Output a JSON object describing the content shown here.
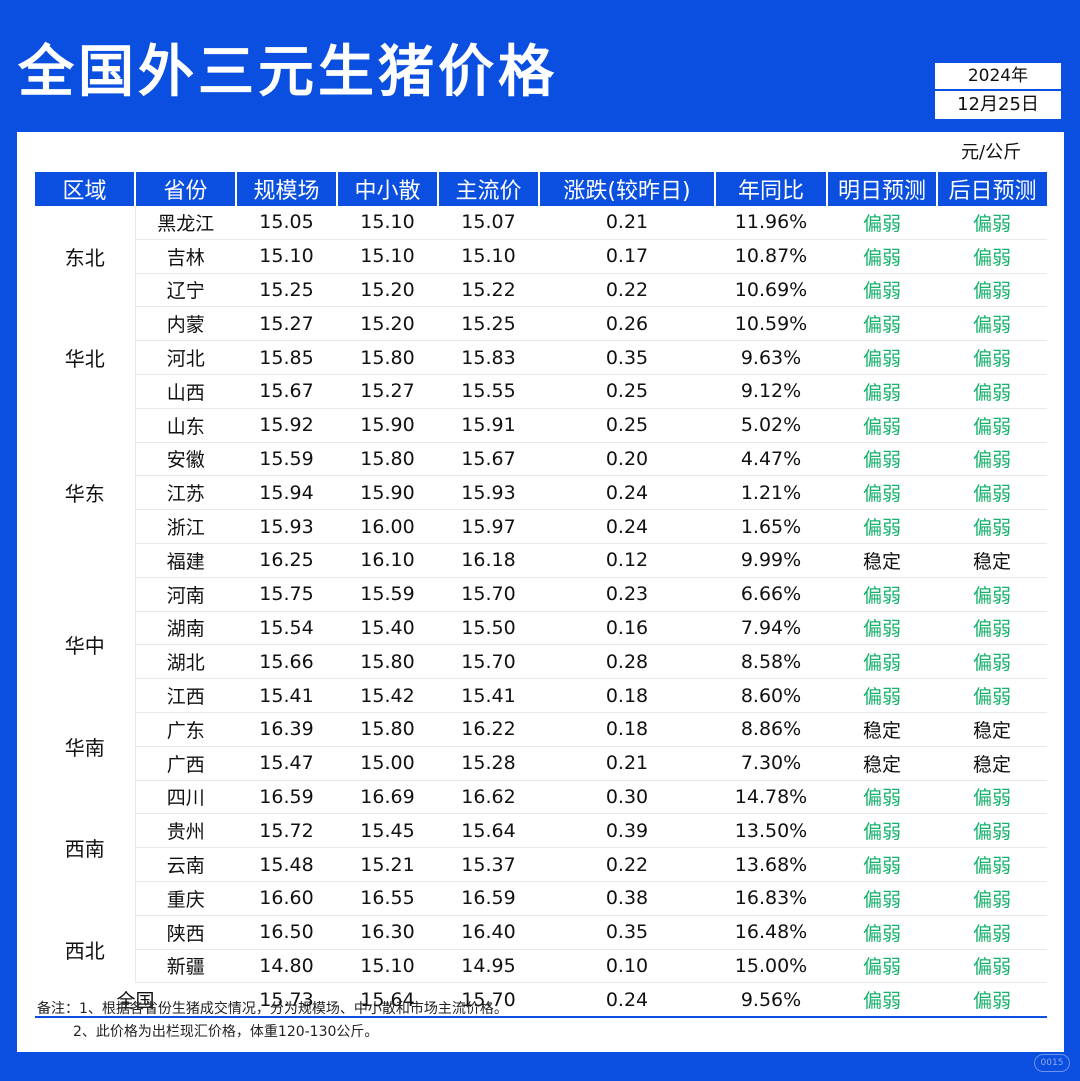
{
  "title": "全国外三元生猪价格",
  "date": {
    "year": "2024年",
    "day": "12月25日"
  },
  "unit": "元/公斤",
  "headers": [
    "区域",
    "省份",
    "规模场",
    "中小散",
    "主流价",
    "涨跌(较昨日)",
    "年同比",
    "明日预测",
    "后日预测"
  ],
  "regions": [
    {
      "name": "东北",
      "rows": [
        {
          "province": "黑龙江",
          "large": "15.05",
          "small": "15.10",
          "main": "15.07",
          "change": "0.21",
          "yoy": "11.96%",
          "tomorrow": "偏弱",
          "dayafter": "偏弱"
        },
        {
          "province": "吉林",
          "large": "15.10",
          "small": "15.10",
          "main": "15.10",
          "change": "0.17",
          "yoy": "10.87%",
          "tomorrow": "偏弱",
          "dayafter": "偏弱"
        },
        {
          "province": "辽宁",
          "large": "15.25",
          "small": "15.20",
          "main": "15.22",
          "change": "0.22",
          "yoy": "10.69%",
          "tomorrow": "偏弱",
          "dayafter": "偏弱"
        }
      ]
    },
    {
      "name": "华北",
      "rows": [
        {
          "province": "内蒙",
          "large": "15.27",
          "small": "15.20",
          "main": "15.25",
          "change": "0.26",
          "yoy": "10.59%",
          "tomorrow": "偏弱",
          "dayafter": "偏弱"
        },
        {
          "province": "河北",
          "large": "15.85",
          "small": "15.80",
          "main": "15.83",
          "change": "0.35",
          "yoy": "9.63%",
          "tomorrow": "偏弱",
          "dayafter": "偏弱"
        },
        {
          "province": "山西",
          "large": "15.67",
          "small": "15.27",
          "main": "15.55",
          "change": "0.25",
          "yoy": "9.12%",
          "tomorrow": "偏弱",
          "dayafter": "偏弱"
        }
      ]
    },
    {
      "name": "华东",
      "rows": [
        {
          "province": "山东",
          "large": "15.92",
          "small": "15.90",
          "main": "15.91",
          "change": "0.25",
          "yoy": "5.02%",
          "tomorrow": "偏弱",
          "dayafter": "偏弱"
        },
        {
          "province": "安徽",
          "large": "15.59",
          "small": "15.80",
          "main": "15.67",
          "change": "0.20",
          "yoy": "4.47%",
          "tomorrow": "偏弱",
          "dayafter": "偏弱"
        },
        {
          "province": "江苏",
          "large": "15.94",
          "small": "15.90",
          "main": "15.93",
          "change": "0.24",
          "yoy": "1.21%",
          "tomorrow": "偏弱",
          "dayafter": "偏弱"
        },
        {
          "province": "浙江",
          "large": "15.93",
          "small": "16.00",
          "main": "15.97",
          "change": "0.24",
          "yoy": "1.65%",
          "tomorrow": "偏弱",
          "dayafter": "偏弱"
        },
        {
          "province": "福建",
          "large": "16.25",
          "small": "16.10",
          "main": "16.18",
          "change": "0.12",
          "yoy": "9.99%",
          "tomorrow": "稳定",
          "dayafter": "稳定"
        }
      ]
    },
    {
      "name": "华中",
      "rows": [
        {
          "province": "河南",
          "large": "15.75",
          "small": "15.59",
          "main": "15.70",
          "change": "0.23",
          "yoy": "6.66%",
          "tomorrow": "偏弱",
          "dayafter": "偏弱"
        },
        {
          "province": "湖南",
          "large": "15.54",
          "small": "15.40",
          "main": "15.50",
          "change": "0.16",
          "yoy": "7.94%",
          "tomorrow": "偏弱",
          "dayafter": "偏弱"
        },
        {
          "province": "湖北",
          "large": "15.66",
          "small": "15.80",
          "main": "15.70",
          "change": "0.28",
          "yoy": "8.58%",
          "tomorrow": "偏弱",
          "dayafter": "偏弱"
        },
        {
          "province": "江西",
          "large": "15.41",
          "small": "15.42",
          "main": "15.41",
          "change": "0.18",
          "yoy": "8.60%",
          "tomorrow": "偏弱",
          "dayafter": "偏弱"
        }
      ]
    },
    {
      "name": "华南",
      "rows": [
        {
          "province": "广东",
          "large": "16.39",
          "small": "15.80",
          "main": "16.22",
          "change": "0.18",
          "yoy": "8.86%",
          "tomorrow": "稳定",
          "dayafter": "稳定"
        },
        {
          "province": "广西",
          "large": "15.47",
          "small": "15.00",
          "main": "15.28",
          "change": "0.21",
          "yoy": "7.30%",
          "tomorrow": "稳定",
          "dayafter": "稳定"
        }
      ]
    },
    {
      "name": "西南",
      "rows": [
        {
          "province": "四川",
          "large": "16.59",
          "small": "16.69",
          "main": "16.62",
          "change": "0.30",
          "yoy": "14.78%",
          "tomorrow": "偏弱",
          "dayafter": "偏弱"
        },
        {
          "province": "贵州",
          "large": "15.72",
          "small": "15.45",
          "main": "15.64",
          "change": "0.39",
          "yoy": "13.50%",
          "tomorrow": "偏弱",
          "dayafter": "偏弱"
        },
        {
          "province": "云南",
          "large": "15.48",
          "small": "15.21",
          "main": "15.37",
          "change": "0.22",
          "yoy": "13.68%",
          "tomorrow": "偏弱",
          "dayafter": "偏弱"
        },
        {
          "province": "重庆",
          "large": "16.60",
          "small": "16.55",
          "main": "16.59",
          "change": "0.38",
          "yoy": "16.83%",
          "tomorrow": "偏弱",
          "dayafter": "偏弱"
        }
      ]
    },
    {
      "name": "西北",
      "rows": [
        {
          "province": "陕西",
          "large": "16.50",
          "small": "16.30",
          "main": "16.40",
          "change": "0.35",
          "yoy": "16.48%",
          "tomorrow": "偏弱",
          "dayafter": "偏弱"
        },
        {
          "province": "新疆",
          "large": "14.80",
          "small": "15.10",
          "main": "14.95",
          "change": "0.10",
          "yoy": "15.00%",
          "tomorrow": "偏弱",
          "dayafter": "偏弱"
        }
      ]
    }
  ],
  "total": {
    "label": "全国",
    "large": "15.73",
    "small": "15.64",
    "main": "15.70",
    "change": "0.24",
    "yoy": "9.56%",
    "tomorrow": "偏弱",
    "dayafter": "偏弱"
  },
  "notes": [
    "备注：1、根据各省份生猪成交情况，分为规模场、中小散和市场主流价格。",
    "2、此价格为出栏现汇价格，体重120-130公斤。"
  ],
  "badge": "0015",
  "colors": {
    "brand": "#0b4fe0",
    "up": "#e8254f",
    "weak": "#15b26b"
  }
}
